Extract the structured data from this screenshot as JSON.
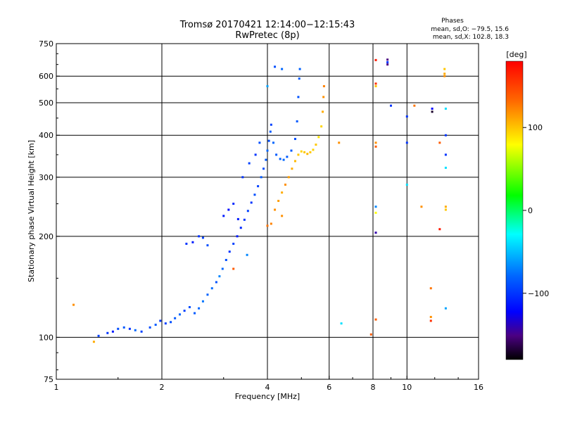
{
  "header": {
    "title": "Tromsø 20170421 12:14:00−12:15:43",
    "subtitle": "RwPretec (8p)"
  },
  "stats": {
    "heading": "Phases",
    "line1": "mean, sd,O: −79.5, 15.6",
    "line2": "mean, sd,X: 102.8, 18.3"
  },
  "colorbar": {
    "label": "[deg]",
    "min": -180,
    "max": 180,
    "ticks": [
      {
        "value": 100,
        "label": "100"
      },
      {
        "value": 0,
        "label": "0"
      },
      {
        "value": -100,
        "label": "−100"
      }
    ]
  },
  "chart_data": {
    "type": "scatter",
    "xlabel": "Frequency [MHz]",
    "ylabel": "Stationary phase Virtual Height [km]",
    "x_scale": "log",
    "y_scale": "log",
    "xlim": [
      1,
      16
    ],
    "ylim": [
      75,
      750
    ],
    "x_ticks": [
      {
        "value": 1,
        "label": "1"
      },
      {
        "value": 2,
        "label": "2"
      },
      {
        "value": 4,
        "label": "4"
      },
      {
        "value": 6,
        "label": "6"
      },
      {
        "value": 8,
        "label": "8"
      },
      {
        "value": 10,
        "label": "10"
      },
      {
        "value": 16,
        "label": "16"
      }
    ],
    "y_ticks": [
      {
        "value": 75,
        "label": "75"
      },
      {
        "value": 100,
        "label": "100"
      },
      {
        "value": 200,
        "label": "200"
      },
      {
        "value": 300,
        "label": "300"
      },
      {
        "value": 400,
        "label": "400"
      },
      {
        "value": 500,
        "label": "500"
      },
      {
        "value": 600,
        "label": "600"
      },
      {
        "value": 750,
        "label": "750"
      }
    ],
    "x_grid": [
      2,
      4,
      6,
      8,
      10
    ],
    "y_grid": [
      100,
      200,
      300,
      400,
      500,
      600
    ],
    "grid": true,
    "color_variable": "phase [deg]",
    "series": [
      {
        "comment_role": "O-mode trace",
        "points": [
          [
            1.32,
            101,
            -95
          ],
          [
            1.4,
            103,
            -100
          ],
          [
            1.45,
            104,
            -110
          ],
          [
            1.5,
            106,
            -90
          ],
          [
            1.56,
            107,
            -85
          ],
          [
            1.62,
            106,
            -100
          ],
          [
            1.68,
            105,
            -80
          ],
          [
            1.75,
            104,
            -95
          ],
          [
            1.85,
            107,
            -90
          ],
          [
            1.92,
            109,
            -85
          ],
          [
            1.98,
            112,
            -100
          ],
          [
            2.05,
            110,
            -95
          ],
          [
            2.12,
            111,
            -90
          ],
          [
            2.18,
            114,
            -85
          ],
          [
            2.25,
            117,
            -80
          ],
          [
            2.32,
            120,
            -95
          ],
          [
            2.4,
            123,
            -90
          ],
          [
            2.48,
            118,
            -85
          ],
          [
            2.55,
            122,
            -80
          ],
          [
            2.62,
            128,
            -75
          ],
          [
            2.7,
            134,
            -82
          ],
          [
            2.78,
            140,
            -78
          ],
          [
            2.86,
            146,
            -88
          ],
          [
            2.92,
            152,
            -70
          ],
          [
            2.98,
            160,
            -80
          ],
          [
            3.05,
            170,
            -90
          ],
          [
            3.12,
            180,
            -100
          ],
          [
            3.2,
            190,
            -95
          ],
          [
            3.28,
            200,
            -110
          ],
          [
            3.36,
            212,
            -105
          ],
          [
            3.44,
            224,
            -100
          ],
          [
            3.52,
            238,
            -95
          ],
          [
            3.6,
            252,
            -100
          ],
          [
            3.68,
            266,
            -90
          ],
          [
            3.76,
            282,
            -95
          ],
          [
            3.84,
            300,
            -85
          ],
          [
            3.9,
            318,
            -90
          ],
          [
            3.96,
            338,
            -85
          ],
          [
            4.0,
            360,
            -80
          ],
          [
            4.04,
            385,
            -90
          ],
          [
            4.08,
            410,
            -85
          ],
          [
            4.1,
            430,
            -95
          ],
          [
            4.16,
            380,
            -80
          ],
          [
            4.24,
            350,
            -85
          ],
          [
            4.35,
            340,
            -82
          ],
          [
            4.45,
            338,
            -80
          ],
          [
            4.55,
            345,
            -85
          ],
          [
            4.68,
            360,
            -85
          ],
          [
            4.8,
            390,
            -90
          ],
          [
            4.86,
            440,
            -85
          ],
          [
            4.9,
            520,
            -88
          ],
          [
            4.93,
            590,
            -85
          ],
          [
            4.95,
            630,
            -82
          ],
          [
            2.35,
            190,
            -100
          ],
          [
            2.45,
            192,
            -110
          ],
          [
            2.55,
            200,
            -100
          ],
          [
            2.62,
            198,
            -95
          ],
          [
            2.7,
            188,
            -90
          ],
          [
            3.0,
            230,
            -110
          ],
          [
            3.1,
            240,
            -115
          ],
          [
            3.2,
            250,
            -105
          ],
          [
            3.3,
            225,
            -110
          ],
          [
            3.4,
            300,
            -100
          ],
          [
            3.55,
            330,
            -95
          ],
          [
            3.7,
            350,
            -100
          ],
          [
            3.8,
            380,
            -90
          ]
        ]
      },
      {
        "comment_role": "X-mode trace",
        "points": [
          [
            4.2,
            240,
            120
          ],
          [
            4.3,
            255,
            115
          ],
          [
            4.4,
            270,
            110
          ],
          [
            4.5,
            285,
            120
          ],
          [
            4.6,
            300,
            115
          ],
          [
            4.7,
            318,
            110
          ],
          [
            4.8,
            335,
            105
          ],
          [
            4.9,
            350,
            100
          ],
          [
            5.0,
            358,
            95
          ],
          [
            5.1,
            356,
            100
          ],
          [
            5.2,
            352,
            105
          ],
          [
            5.3,
            356,
            100
          ],
          [
            5.4,
            362,
            95
          ],
          [
            5.5,
            375,
            100
          ],
          [
            5.6,
            395,
            90
          ],
          [
            5.7,
            425,
            95
          ],
          [
            5.75,
            470,
            110
          ],
          [
            5.78,
            520,
            120
          ],
          [
            5.8,
            560,
            125
          ],
          [
            4.0,
            215,
            130
          ],
          [
            4.1,
            218,
            125
          ],
          [
            4.4,
            230,
            120
          ]
        ]
      },
      {
        "comment_role": "scattered echoes",
        "points": [
          [
            1.12,
            125,
            120
          ],
          [
            1.28,
            97,
            110
          ],
          [
            3.2,
            160,
            140
          ],
          [
            3.5,
            176,
            -70
          ],
          [
            4.2,
            640,
            -90
          ],
          [
            4.4,
            630,
            -80
          ],
          [
            4.0,
            560,
            -60
          ],
          [
            6.4,
            380,
            120
          ],
          [
            6.5,
            110,
            -40
          ],
          [
            7.9,
            102,
            140
          ],
          [
            8.15,
            670,
            170
          ],
          [
            8.15,
            570,
            160
          ],
          [
            8.15,
            560,
            100
          ],
          [
            8.15,
            380,
            120
          ],
          [
            8.15,
            370,
            140
          ],
          [
            8.15,
            245,
            -70
          ],
          [
            8.15,
            235,
            80
          ],
          [
            8.15,
            205,
            -140
          ],
          [
            8.15,
            113,
            140
          ],
          [
            8.8,
            672,
            -150
          ],
          [
            8.8,
            660,
            -100
          ],
          [
            8.8,
            650,
            -150
          ],
          [
            9.0,
            490,
            -100
          ],
          [
            10.0,
            455,
            -100
          ],
          [
            10.0,
            380,
            -100
          ],
          [
            10.0,
            285,
            -40
          ],
          [
            10.5,
            490,
            130
          ],
          [
            11.0,
            245,
            120
          ],
          [
            11.8,
            480,
            -120
          ],
          [
            11.8,
            470,
            -170
          ],
          [
            11.7,
            140,
            130
          ],
          [
            11.7,
            115,
            120
          ],
          [
            11.7,
            112,
            160
          ],
          [
            12.4,
            380,
            140
          ],
          [
            12.4,
            210,
            170
          ],
          [
            12.8,
            630,
            100
          ],
          [
            12.8,
            610,
            110
          ],
          [
            12.8,
            600,
            120
          ],
          [
            12.9,
            480,
            -40
          ],
          [
            12.9,
            400,
            -100
          ],
          [
            12.9,
            350,
            -100
          ],
          [
            12.9,
            320,
            -40
          ],
          [
            12.9,
            245,
            110
          ],
          [
            12.9,
            240,
            100
          ],
          [
            12.9,
            122,
            -60
          ]
        ]
      }
    ]
  }
}
